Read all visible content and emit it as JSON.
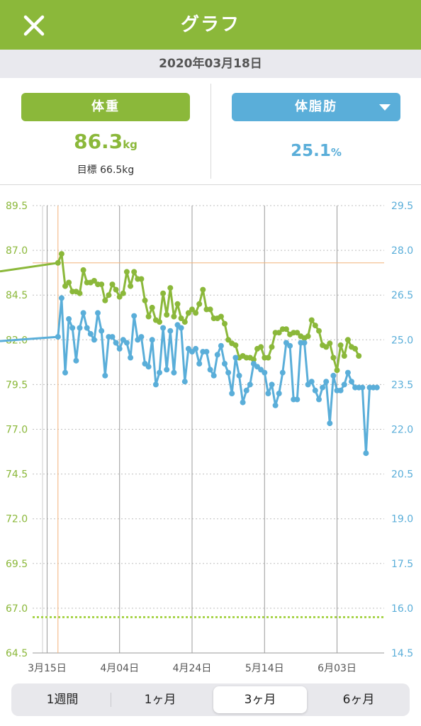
{
  "header": {
    "title": "グラフ",
    "close_icon": "close-icon"
  },
  "date": "2020年03月18日",
  "weight": {
    "label": "体重",
    "value": "86.3",
    "unit": "kg",
    "goal": "目標 66.5kg",
    "color": "#8bb83a"
  },
  "body_fat": {
    "label": "体脂肪",
    "value": "25.1",
    "unit": "%",
    "dropdown_icon": "triangle-down-icon",
    "color": "#5aaed9"
  },
  "tabs": [
    {
      "label": "1週間",
      "active": false
    },
    {
      "label": "1ヶ月",
      "active": false
    },
    {
      "label": "3ヶ月",
      "active": true
    },
    {
      "label": "6ヶ月",
      "active": false
    }
  ],
  "chart_data": {
    "type": "line",
    "x_tick_labels": [
      "3月15日",
      "4月04日",
      "4月24日",
      "5月14日",
      "6月03日"
    ],
    "x_range": [
      "2020-03-11",
      "2020-06-16"
    ],
    "selected_date": "2020-03-18",
    "y_left": {
      "label": "体重",
      "ticks": [
        "89.5",
        "87.0",
        "84.5",
        "82.0",
        "79.5",
        "77.0",
        "74.5",
        "72.0",
        "69.5",
        "67.0",
        "64.5"
      ],
      "ylim": [
        64.5,
        89.5
      ]
    },
    "y_right": {
      "label": "体脂肪",
      "ticks": [
        "29.5",
        "28.0",
        "26.5",
        "25.0",
        "23.5",
        "22.0",
        "20.5",
        "19.0",
        "17.5",
        "16.0",
        "14.5"
      ],
      "ylim": [
        14.5,
        29.5
      ]
    },
    "goal_weight": 66.5,
    "series": [
      {
        "name": "体重",
        "axis": "left",
        "color": "#8bb83a",
        "x": [
          "2020-03-18",
          "2020-03-19",
          "2020-03-20",
          "2020-03-21",
          "2020-03-22",
          "2020-03-23",
          "2020-03-24",
          "2020-03-25",
          "2020-03-26",
          "2020-03-27",
          "2020-03-28",
          "2020-03-29",
          "2020-03-30",
          "2020-03-31",
          "2020-04-01",
          "2020-04-02",
          "2020-04-03",
          "2020-04-04",
          "2020-04-05",
          "2020-04-06",
          "2020-04-07",
          "2020-04-08",
          "2020-04-09",
          "2020-04-10",
          "2020-04-11",
          "2020-04-12",
          "2020-04-13",
          "2020-04-14",
          "2020-04-15",
          "2020-04-16",
          "2020-04-17",
          "2020-04-18",
          "2020-04-19",
          "2020-04-20",
          "2020-04-21",
          "2020-04-22",
          "2020-04-23",
          "2020-04-24",
          "2020-04-25",
          "2020-04-26",
          "2020-04-27",
          "2020-04-28",
          "2020-04-29",
          "2020-04-30",
          "2020-05-01",
          "2020-05-02",
          "2020-05-03",
          "2020-05-04",
          "2020-05-05",
          "2020-05-06",
          "2020-05-07",
          "2020-05-08",
          "2020-05-09",
          "2020-05-10",
          "2020-05-11",
          "2020-05-12",
          "2020-05-13",
          "2020-05-14",
          "2020-05-15",
          "2020-05-16",
          "2020-05-17",
          "2020-05-18",
          "2020-05-19",
          "2020-05-20",
          "2020-05-21",
          "2020-05-22",
          "2020-05-23",
          "2020-05-24",
          "2020-05-25",
          "2020-05-26",
          "2020-05-27",
          "2020-05-28",
          "2020-05-29",
          "2020-05-30",
          "2020-05-31",
          "2020-06-01",
          "2020-06-02",
          "2020-06-03",
          "2020-06-04",
          "2020-06-05",
          "2020-06-06",
          "2020-06-07",
          "2020-06-08",
          "2020-06-09"
        ],
        "values": [
          86.3,
          86.8,
          85.0,
          85.2,
          84.7,
          84.7,
          84.6,
          85.9,
          85.2,
          85.2,
          85.3,
          85.1,
          85.1,
          84.2,
          84.5,
          85.1,
          84.8,
          84.4,
          84.6,
          85.8,
          85.0,
          85.8,
          85.4,
          85.4,
          84.2,
          83.3,
          83.8,
          83.1,
          83.0,
          84.6,
          83.4,
          84.9,
          83.3,
          84.0,
          83.2,
          83.0,
          83.5,
          83.7,
          83.5,
          84.0,
          84.8,
          83.7,
          83.7,
          83.2,
          83.2,
          83.3,
          82.9,
          82.0,
          81.8,
          81.7,
          81.0,
          81.1,
          81.0,
          81.0,
          80.9,
          81.5,
          81.6,
          81.0,
          81.0,
          81.6,
          82.4,
          82.4,
          82.6,
          82.6,
          82.3,
          82.4,
          82.4,
          82.2,
          82.1,
          82.2,
          83.1,
          82.8,
          82.5,
          81.7,
          81.6,
          81.8,
          81.0,
          80.3,
          81.7,
          81.1,
          82.0,
          81.6,
          81.5,
          81.1
        ]
      },
      {
        "name": "体脂肪",
        "axis": "right",
        "color": "#5aaed9",
        "x": [
          "2020-03-18",
          "2020-03-19",
          "2020-03-20",
          "2020-03-21",
          "2020-03-22",
          "2020-03-23",
          "2020-03-24",
          "2020-03-25",
          "2020-03-26",
          "2020-03-27",
          "2020-03-28",
          "2020-03-29",
          "2020-03-30",
          "2020-03-31",
          "2020-04-01",
          "2020-04-02",
          "2020-04-03",
          "2020-04-04",
          "2020-04-05",
          "2020-04-06",
          "2020-04-07",
          "2020-04-08",
          "2020-04-09",
          "2020-04-10",
          "2020-04-11",
          "2020-04-12",
          "2020-04-13",
          "2020-04-14",
          "2020-04-15",
          "2020-04-16",
          "2020-04-17",
          "2020-04-18",
          "2020-04-19",
          "2020-04-20",
          "2020-04-21",
          "2020-04-22",
          "2020-04-23",
          "2020-04-24",
          "2020-04-25",
          "2020-04-26",
          "2020-04-27",
          "2020-04-28",
          "2020-04-29",
          "2020-04-30",
          "2020-05-01",
          "2020-05-02",
          "2020-05-03",
          "2020-05-04",
          "2020-05-05",
          "2020-05-06",
          "2020-05-07",
          "2020-05-08",
          "2020-05-09",
          "2020-05-10",
          "2020-05-11",
          "2020-05-12",
          "2020-05-13",
          "2020-05-14",
          "2020-05-15",
          "2020-05-16",
          "2020-05-17",
          "2020-05-18",
          "2020-05-19",
          "2020-05-20",
          "2020-05-21",
          "2020-05-22",
          "2020-05-23",
          "2020-05-24",
          "2020-05-25",
          "2020-05-26",
          "2020-05-27",
          "2020-05-28",
          "2020-05-29",
          "2020-05-30",
          "2020-05-31",
          "2020-06-01",
          "2020-06-02",
          "2020-06-03",
          "2020-06-04",
          "2020-06-05",
          "2020-06-06",
          "2020-06-07",
          "2020-06-08",
          "2020-06-09",
          "2020-06-10",
          "2020-06-11",
          "2020-06-12",
          "2020-06-13",
          "2020-06-14"
        ],
        "values": [
          25.1,
          26.4,
          23.9,
          25.7,
          25.4,
          24.3,
          25.4,
          25.9,
          25.4,
          25.2,
          25.0,
          25.9,
          25.3,
          23.8,
          25.1,
          25.1,
          24.9,
          24.7,
          25.0,
          24.9,
          24.4,
          25.8,
          25.0,
          25.1,
          24.2,
          24.1,
          25.0,
          23.5,
          23.9,
          25.4,
          24.0,
          25.3,
          23.9,
          25.5,
          25.4,
          23.6,
          24.7,
          24.6,
          24.7,
          24.2,
          24.6,
          24.6,
          24.0,
          23.8,
          24.5,
          24.8,
          24.2,
          23.9,
          23.2,
          24.4,
          23.8,
          22.9,
          23.3,
          23.5,
          24.2,
          24.1,
          24.0,
          23.9,
          23.2,
          23.5,
          22.8,
          23.2,
          23.9,
          24.9,
          24.8,
          23.0,
          23.0,
          24.9,
          24.9,
          23.5,
          23.6,
          23.3,
          23.0,
          23.4,
          23.6,
          22.2,
          23.8,
          23.3,
          23.3,
          23.5,
          23.9,
          23.6,
          23.4,
          23.4,
          23.4,
          21.2,
          23.4,
          23.4,
          23.4
        ]
      }
    ]
  }
}
